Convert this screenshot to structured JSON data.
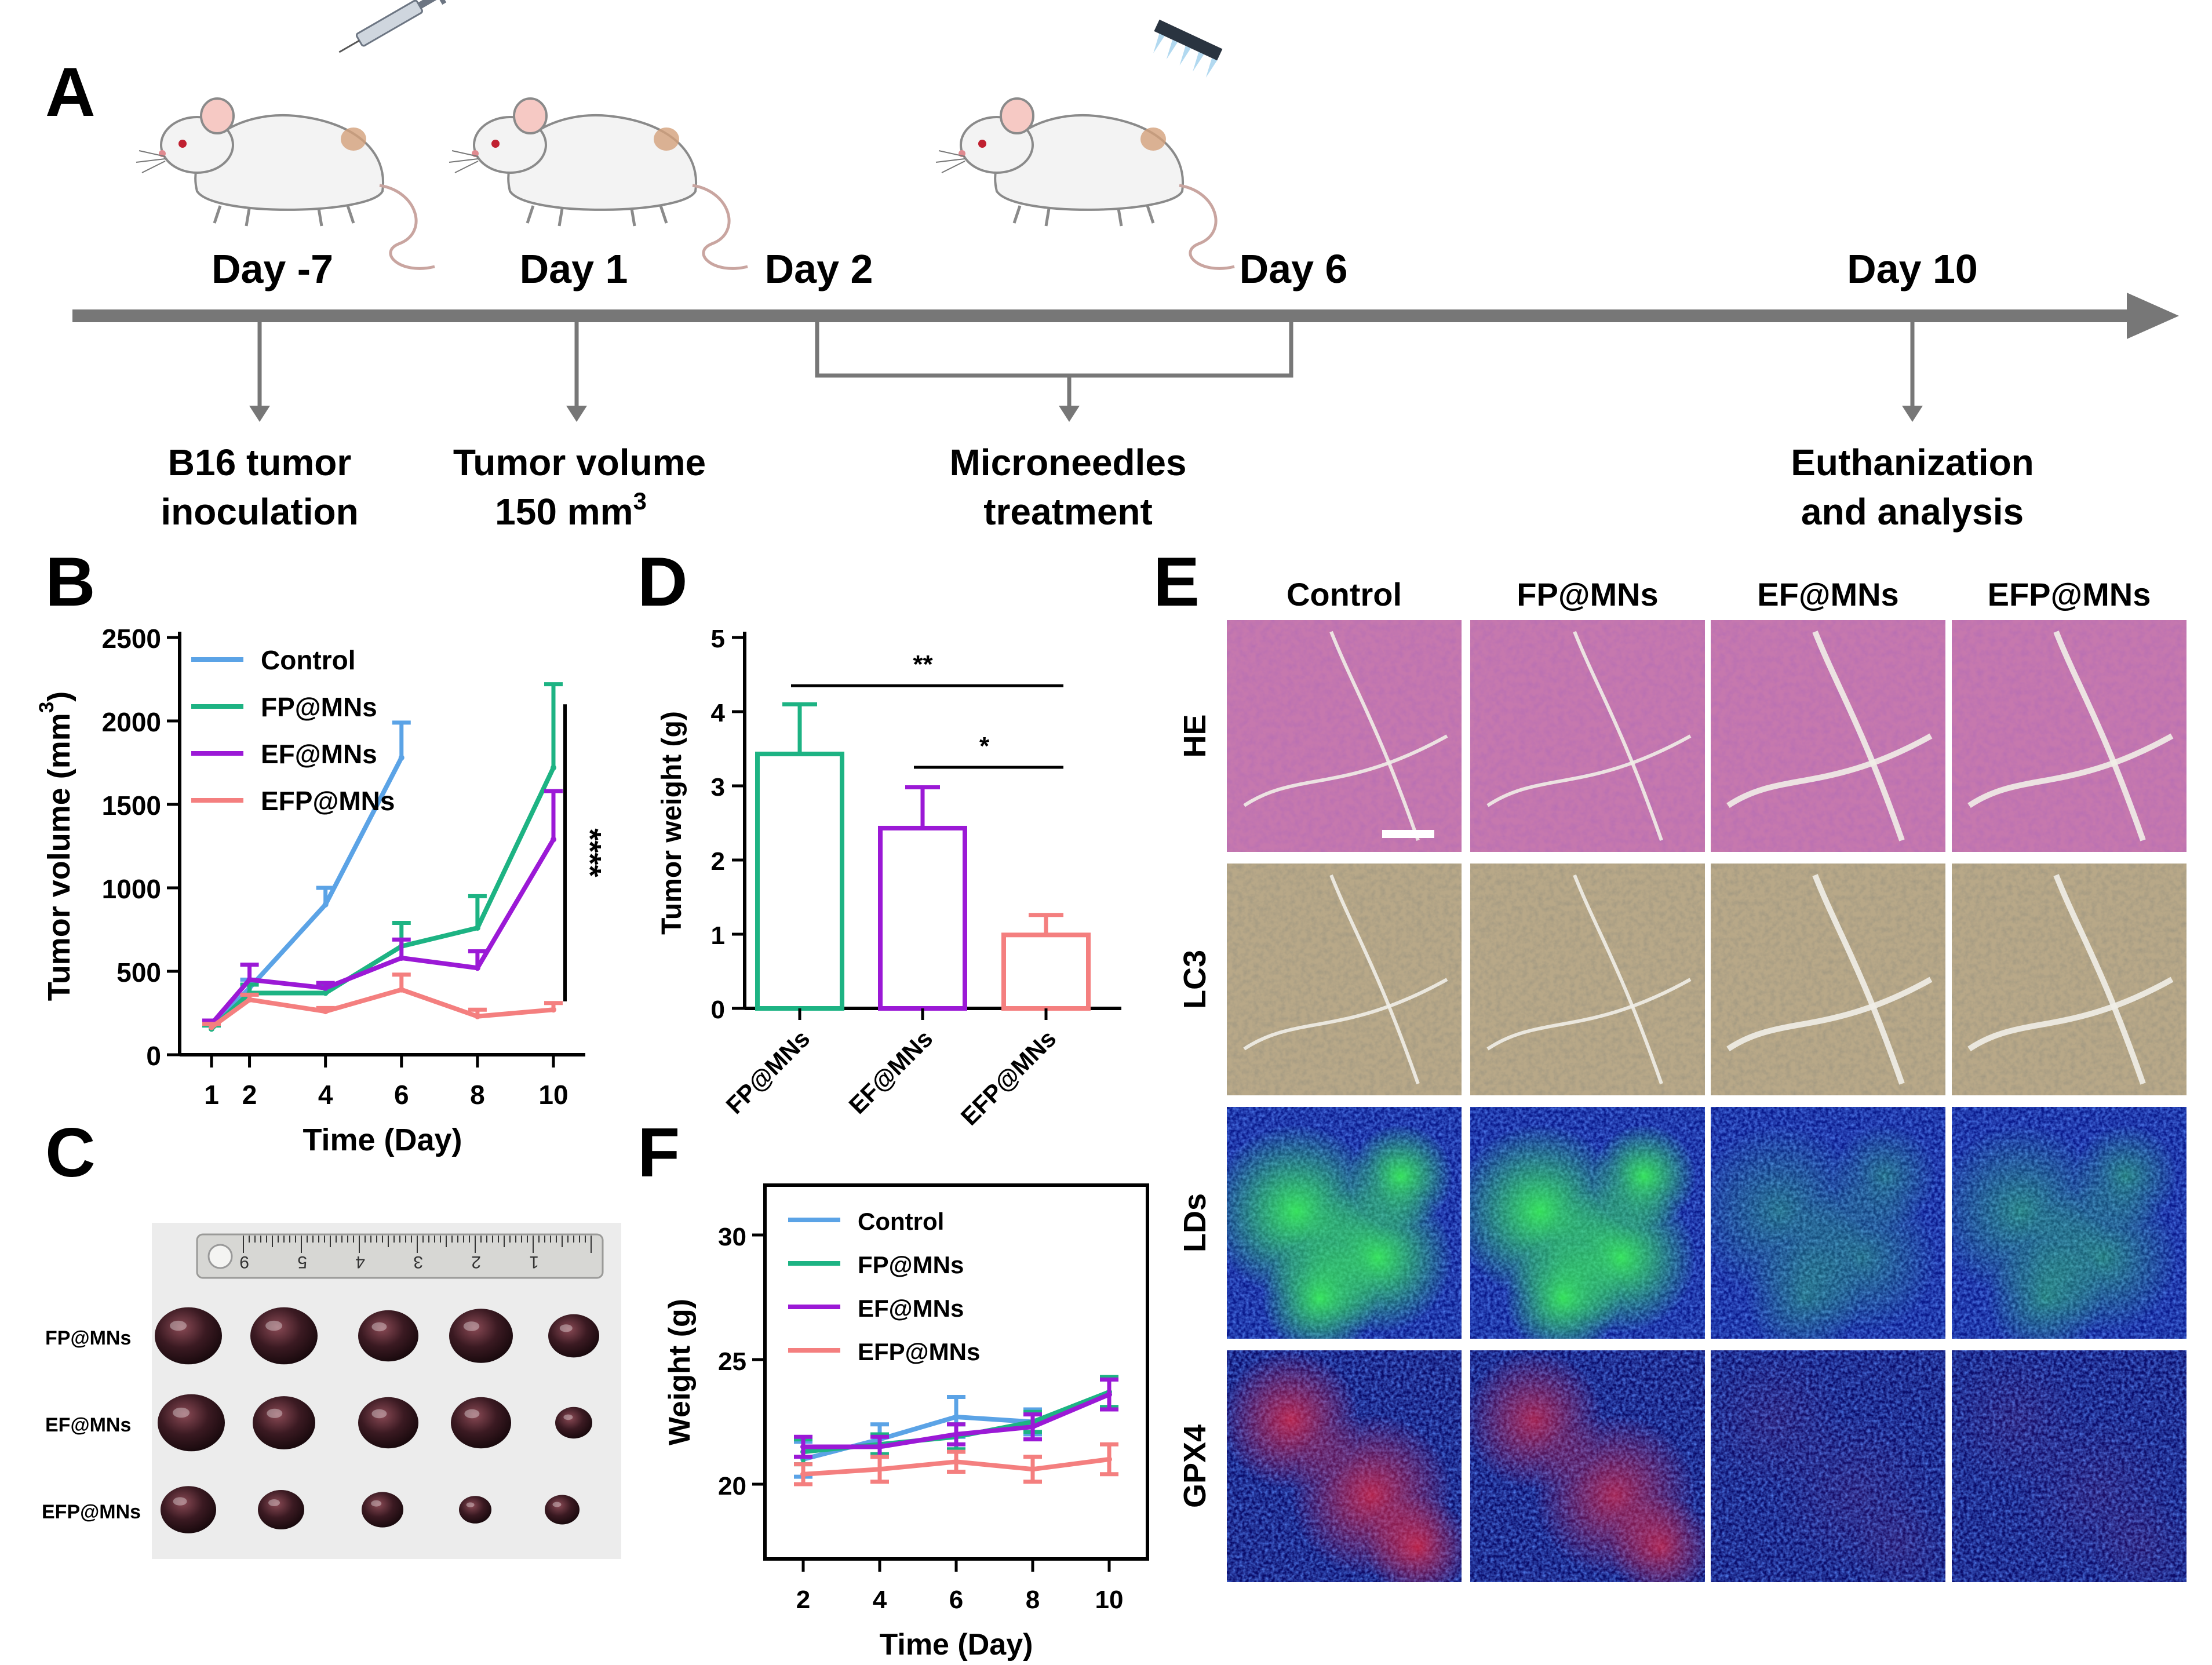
{
  "panels": {
    "A": "A",
    "B": "B",
    "C": "C",
    "D": "D",
    "E": "E",
    "F": "F"
  },
  "colors": {
    "control": "#5ba3e6",
    "fp": "#1db383",
    "ef": "#9b19d6",
    "efp": "#f47f7f",
    "timeline": "#777777"
  },
  "timeline": {
    "days": [
      "Day -7",
      "Day 1",
      "Day 2",
      "Day 6",
      "Day 10"
    ],
    "events": [
      {
        "line1": "B16 tumor",
        "line2": "inoculation"
      },
      {
        "line1": "Tumor volume",
        "line2": "150 mm",
        "sup": "3"
      },
      {
        "line1": "Microneedles",
        "line2": "treatment"
      },
      {
        "line1": "Euthanization",
        "line2": "and analysis"
      }
    ]
  },
  "chart_data": [
    {
      "panel": "B",
      "type": "line",
      "xlabel": "Time (Day)",
      "ylabel": "Tumor volume (mm",
      "ylabel_sup": "3",
      "ylabel_close": ")",
      "x": [
        1,
        2,
        4,
        6,
        8,
        10
      ],
      "xticks": [
        "1",
        "2",
        "4",
        "6",
        "8",
        "10"
      ],
      "ylim": [
        0,
        2500
      ],
      "yticks": [
        "0",
        "500",
        "1000",
        "1500",
        "2000",
        "2500"
      ],
      "annotation": "****",
      "series": [
        {
          "name": "Control",
          "x": [
            1,
            2,
            4,
            6
          ],
          "values": [
            160,
            400,
            900,
            1780
          ],
          "err": [
            20,
            50,
            100,
            210
          ]
        },
        {
          "name": "FP@MNs",
          "x": [
            1,
            2,
            4,
            6,
            8,
            10
          ],
          "values": [
            155,
            370,
            370,
            650,
            760,
            1720
          ],
          "err": [
            20,
            50,
            40,
            140,
            190,
            500
          ]
        },
        {
          "name": "EF@MNs",
          "x": [
            1,
            2,
            4,
            6,
            8,
            10
          ],
          "values": [
            185,
            450,
            400,
            580,
            520,
            1290
          ],
          "err": [
            20,
            90,
            30,
            110,
            100,
            290
          ]
        },
        {
          "name": "EFP@MNs",
          "x": [
            1,
            2,
            4,
            6,
            8,
            10
          ],
          "values": [
            165,
            330,
            260,
            390,
            230,
            270
          ],
          "err": [
            20,
            30,
            20,
            90,
            40,
            40
          ]
        }
      ]
    },
    {
      "panel": "D",
      "type": "bar",
      "ylabel": "Tumor weight (g)",
      "categories": [
        "FP@MNs",
        "EF@MNs",
        "EFP@MNs"
      ],
      "values": [
        3.43,
        2.43,
        0.99
      ],
      "err": [
        0.67,
        0.55,
        0.27
      ],
      "ylim": [
        0,
        5
      ],
      "yticks": [
        "0",
        "1",
        "2",
        "3",
        "4",
        "5"
      ],
      "significance": [
        {
          "from": 0,
          "to": 2,
          "y": 4.35,
          "label": "**"
        },
        {
          "from": 1,
          "to": 2,
          "y": 3.25,
          "label": "*"
        }
      ]
    },
    {
      "panel": "F",
      "type": "line",
      "xlabel": "Time (Day)",
      "ylabel": "Weight (g)",
      "x": [
        2,
        4,
        6,
        8,
        10
      ],
      "xticks": [
        "2",
        "4",
        "6",
        "8",
        "10"
      ],
      "ylim": [
        17,
        32
      ],
      "yticks": [
        "20",
        "25",
        "30"
      ],
      "series": [
        {
          "name": "Control",
          "values": [
            21.0,
            21.8,
            22.7,
            22.5,
            23.6
          ],
          "err": [
            0.7,
            0.6,
            0.8,
            0.5,
            0.6
          ]
        },
        {
          "name": "FP@MNs",
          "values": [
            21.3,
            21.6,
            21.9,
            22.5,
            23.7
          ],
          "err": [
            0.5,
            0.4,
            0.5,
            0.4,
            0.6
          ]
        },
        {
          "name": "EF@MNs",
          "values": [
            21.5,
            21.5,
            22.0,
            22.3,
            23.6
          ],
          "err": [
            0.4,
            0.4,
            0.4,
            0.5,
            0.6
          ]
        },
        {
          "name": "EFP@MNs",
          "values": [
            20.4,
            20.6,
            20.9,
            20.6,
            21.0
          ],
          "err": [
            0.4,
            0.5,
            0.4,
            0.5,
            0.6
          ]
        }
      ]
    }
  ],
  "photo_c": {
    "row_labels": [
      "FP@MNs",
      "EF@MNs",
      "EFP@MNs"
    ],
    "ruler_numbers": [
      "9",
      "5",
      "4",
      "3",
      "2",
      "1"
    ]
  },
  "micro_e": {
    "columns": [
      "Control",
      "FP@MNs",
      "EF@MNs",
      "EFP@MNs"
    ],
    "rows": [
      "HE",
      "LC3",
      "LDs",
      "GPX4"
    ]
  }
}
